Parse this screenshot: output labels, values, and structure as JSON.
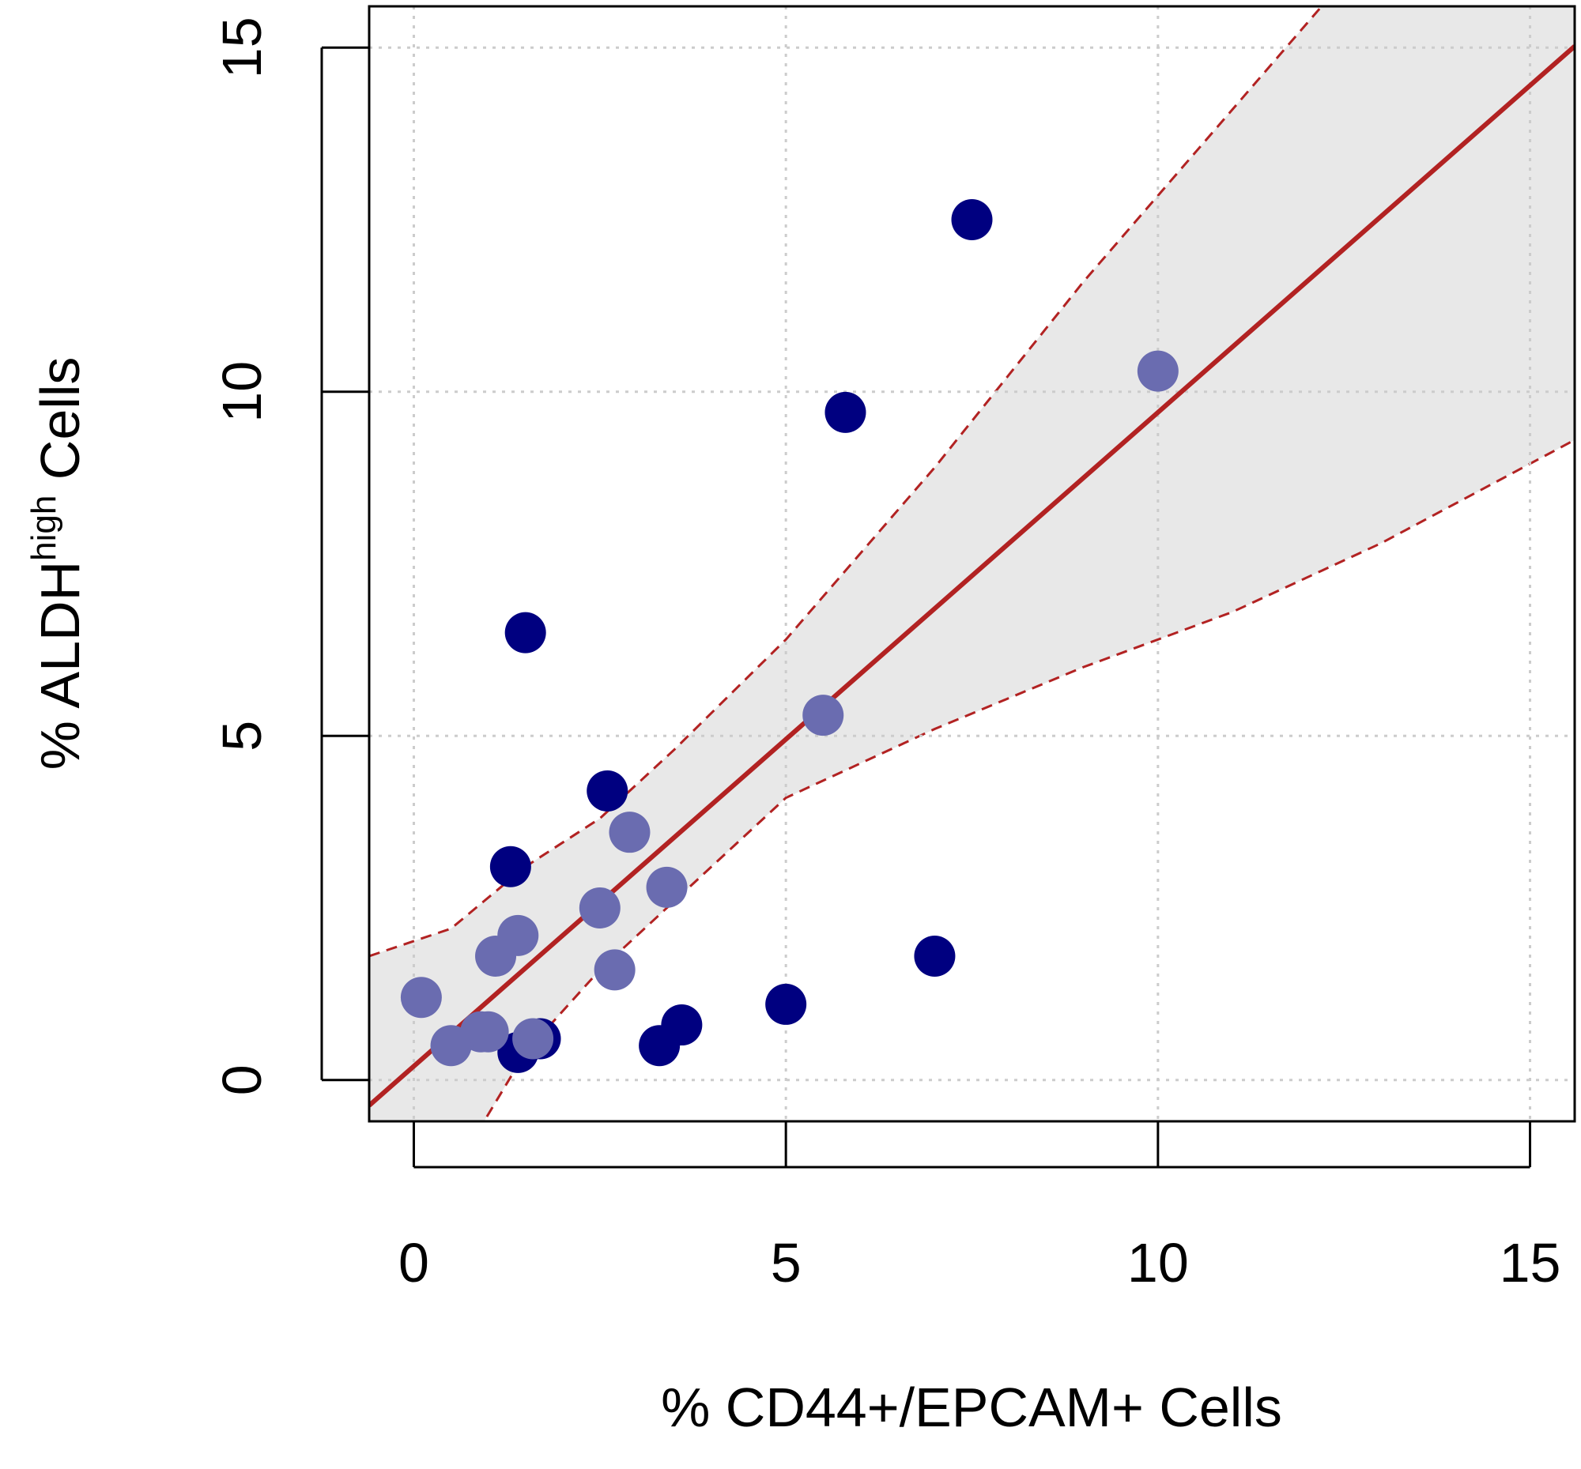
{
  "chart_data": {
    "type": "scatter",
    "xlabel": "% CD44+/EPCAM+ Cells",
    "ylabel": {
      "prefix": "% ALDH",
      "superscript": "high",
      "suffix": " Cells"
    },
    "xlim": [
      -0.6,
      15.6
    ],
    "ylim": [
      -0.6,
      15.6
    ],
    "x_ticks": [
      "0",
      "5",
      "10",
      "15"
    ],
    "y_ticks": [
      "0",
      "5",
      "10",
      "15"
    ],
    "grid": true,
    "series": [
      {
        "color": "#000080",
        "points": [
          {
            "x": 7.5,
            "y": 12.5
          },
          {
            "x": 5.8,
            "y": 9.7
          },
          {
            "x": 1.5,
            "y": 6.5
          },
          {
            "x": 2.6,
            "y": 4.2
          },
          {
            "x": 1.3,
            "y": 3.1
          },
          {
            "x": 7.0,
            "y": 1.8
          },
          {
            "x": 5.0,
            "y": 1.1
          },
          {
            "x": 3.6,
            "y": 0.8
          },
          {
            "x": 3.3,
            "y": 0.5
          },
          {
            "x": 1.4,
            "y": 0.4
          },
          {
            "x": 1.7,
            "y": 0.6
          }
        ]
      },
      {
        "color": "#6a6cb0",
        "points": [
          {
            "x": 10.0,
            "y": 10.3
          },
          {
            "x": 5.5,
            "y": 5.3
          },
          {
            "x": 2.9,
            "y": 3.6
          },
          {
            "x": 3.4,
            "y": 2.8
          },
          {
            "x": 2.5,
            "y": 2.5
          },
          {
            "x": 1.4,
            "y": 2.1
          },
          {
            "x": 1.1,
            "y": 1.8
          },
          {
            "x": 2.7,
            "y": 1.6
          },
          {
            "x": 0.1,
            "y": 1.2
          },
          {
            "x": 0.5,
            "y": 0.5
          },
          {
            "x": 0.9,
            "y": 0.7
          },
          {
            "x": 1.0,
            "y": 0.7
          },
          {
            "x": 1.6,
            "y": 0.6
          }
        ]
      }
    ],
    "fit_line": {
      "intercept": 0.2,
      "slope": 0.95,
      "color": "#b22222"
    },
    "confidence_band": {
      "color": "#b22222",
      "fill": "#e8e8e8",
      "x": [
        -0.6,
        0.5,
        1.5,
        2.5,
        3.5,
        5.0,
        7.0,
        9.0,
        11.0,
        12.2,
        13.0,
        15.6
      ],
      "upper": [
        1.8,
        2.2,
        3.1,
        3.8,
        4.8,
        6.4,
        8.9,
        11.6,
        14.1,
        15.6,
        16.4,
        19.4
      ],
      "lower": [
        -3.2,
        -1.4,
        0.4,
        1.6,
        2.6,
        4.1,
        5.1,
        6.0,
        6.8,
        7.4,
        7.8,
        9.3
      ]
    }
  }
}
